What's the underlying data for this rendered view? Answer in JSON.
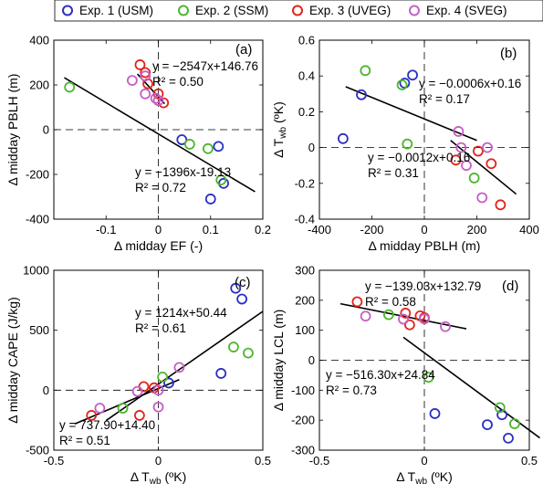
{
  "legend": {
    "entries": [
      {
        "label": "Exp. 1 (USM)",
        "color": "#2b2fc4"
      },
      {
        "label": "Exp. 2 (SSM)",
        "color": "#4db52e"
      },
      {
        "label": "Exp. 3 (UVEG)",
        "color": "#e3231b"
      },
      {
        "label": "Exp. 4 (SVEG)",
        "color": "#c45fc6"
      }
    ]
  },
  "chart_data": [
    {
      "panel": "(a)",
      "type": "scatter",
      "xlabel": "Δ midday EF (-)",
      "ylabel": "Δ midday PBLH (m)",
      "xlim": [
        -0.2,
        0.2
      ],
      "ylim": [
        -400,
        400
      ],
      "xticks": [
        -0.1,
        0,
        0.1,
        0.2
      ],
      "xtick_labels": [
        "-0.1",
        "0",
        "0.1",
        "0.2"
      ],
      "yticks": [
        -400,
        -200,
        0,
        200,
        400
      ],
      "ytick_labels": [
        "-400",
        "-200",
        "0",
        "200",
        "400"
      ],
      "series": [
        {
          "name": "Exp. 1 (USM)",
          "points": [
            [
              0.045,
              -45
            ],
            [
              0.1,
              -310
            ],
            [
              0.115,
              -75
            ],
            [
              0.125,
              -240
            ]
          ]
        },
        {
          "name": "Exp. 2 (SSM)",
          "points": [
            [
              -0.17,
              190
            ],
            [
              0.06,
              -65
            ],
            [
              0.095,
              -85
            ],
            [
              0.12,
              -225
            ]
          ]
        },
        {
          "name": "Exp. 3 (UVEG)",
          "points": [
            [
              -0.035,
              290
            ],
            [
              -0.025,
              255
            ],
            [
              -0.02,
              205
            ],
            [
              0.0,
              160
            ],
            [
              0.01,
              120
            ]
          ]
        },
        {
          "name": "Exp. 4 (SVEG)",
          "points": [
            [
              -0.05,
              220
            ],
            [
              -0.025,
              240
            ],
            [
              -0.025,
              160
            ],
            [
              -0.005,
              140
            ],
            [
              0.0,
              130
            ]
          ]
        }
      ],
      "fits": [
        {
          "equation": "y = −2547x+146.76",
          "r2": "R² = 0.50",
          "slope": -2547,
          "intercept": 146.76,
          "x_range": [
            -0.04,
            0.012
          ]
        },
        {
          "equation": "y = −1396x-19.13",
          "r2": "R² = 0.72",
          "slope": -1396,
          "intercept": -19.13,
          "x_range": [
            -0.18,
            0.185
          ]
        }
      ]
    },
    {
      "panel": "(b)",
      "type": "scatter",
      "xlabel": "Δ midday PBLH (m)",
      "ylabel_main": "Δ T",
      "ylabel_sub": "wb",
      "ylabel_unit": "(ºK)",
      "xlim": [
        -400,
        400
      ],
      "ylim": [
        -0.4,
        0.6
      ],
      "xticks": [
        -400,
        -200,
        0,
        200,
        400
      ],
      "xtick_labels": [
        "-400",
        "-200",
        "0",
        "200",
        "400"
      ],
      "yticks": [
        -0.4,
        -0.2,
        0,
        0.2,
        0.4,
        0.6
      ],
      "ytick_labels": [
        "-0.4",
        "-0.2",
        "0",
        "0.2",
        "0.4",
        "0.6"
      ],
      "series": [
        {
          "name": "Exp. 1 (USM)",
          "points": [
            [
              -310,
              0.05
            ],
            [
              -240,
              0.295
            ],
            [
              -75,
              0.36
            ],
            [
              -45,
              0.405
            ]
          ]
        },
        {
          "name": "Exp. 2 (SSM)",
          "points": [
            [
              -225,
              0.43
            ],
            [
              -85,
              0.35
            ],
            [
              -65,
              0.02
            ],
            [
              190,
              -0.17
            ]
          ]
        },
        {
          "name": "Exp. 3 (UVEG)",
          "points": [
            [
              120,
              -0.07
            ],
            [
              205,
              -0.02
            ],
            [
              255,
              -0.09
            ],
            [
              290,
              -0.32
            ]
          ]
        },
        {
          "name": "Exp. 4 (SVEG)",
          "points": [
            [
              130,
              0.09
            ],
            [
              140,
              0.0
            ],
            [
              160,
              -0.1
            ],
            [
              220,
              -0.28
            ],
            [
              240,
              0.0
            ]
          ]
        }
      ],
      "fits": [
        {
          "equation": "y = −0.0006x+0.16",
          "r2": "R² = 0.17",
          "slope": -0.0006,
          "intercept": 0.16,
          "x_range": [
            -300,
            200
          ]
        },
        {
          "equation": "y = −0.0012x+0.16",
          "r2": "R² = 0.31",
          "slope": -0.0012,
          "intercept": 0.16,
          "x_range": [
            100,
            350
          ]
        }
      ]
    },
    {
      "panel": "(c)",
      "type": "scatter",
      "xlabel_main": "Δ T",
      "xlabel_sub": "wb",
      "xlabel_unit": "(ºK)",
      "ylabel": "Δ midday CAPE (J/kg)",
      "xlim": [
        -0.5,
        0.5
      ],
      "ylim": [
        -500,
        1000
      ],
      "xticks": [
        -0.5,
        0,
        0.5
      ],
      "xtick_labels": [
        "-0.5",
        "0",
        "0.5"
      ],
      "yticks": [
        -500,
        0,
        500,
        1000
      ],
      "ytick_labels": [
        "-500",
        "0",
        "500",
        "1000"
      ],
      "series": [
        {
          "name": "Exp. 1 (USM)",
          "points": [
            [
              0.05,
              60
            ],
            [
              0.3,
              140
            ],
            [
              0.37,
              850
            ],
            [
              0.4,
              760
            ]
          ]
        },
        {
          "name": "Exp. 2 (SSM)",
          "points": [
            [
              -0.17,
              -150
            ],
            [
              0.02,
              110
            ],
            [
              0.36,
              360
            ],
            [
              0.43,
              310
            ]
          ]
        },
        {
          "name": "Exp. 3 (UVEG)",
          "points": [
            [
              -0.32,
              -210
            ],
            [
              -0.09,
              -210
            ],
            [
              -0.07,
              30
            ],
            [
              -0.02,
              20
            ]
          ]
        },
        {
          "name": "Exp. 4 (SVEG)",
          "points": [
            [
              -0.28,
              -150
            ],
            [
              -0.1,
              -10
            ],
            [
              0.0,
              -140
            ],
            [
              0.0,
              0
            ],
            [
              0.1,
              190
            ]
          ]
        }
      ],
      "fits": [
        {
          "equation": "y = 1214x+50.44",
          "r2": "R² = 0.61",
          "slope": 1214,
          "intercept": 50.44,
          "x_range": [
            -0.25,
            0.5
          ]
        },
        {
          "equation": "y = 737.90+14.40",
          "r2": "R² = 0.51",
          "slope": 737.9,
          "intercept": 14.4,
          "x_range": [
            -0.4,
            0.1
          ]
        }
      ]
    },
    {
      "panel": "(d)",
      "type": "scatter",
      "xlabel_main": "Δ T",
      "xlabel_sub": "wb",
      "xlabel_unit": "(ºK)",
      "ylabel": "Δ midday LCL (m)",
      "xlim": [
        -0.5,
        0.5
      ],
      "ylim": [
        -300,
        300
      ],
      "xticks": [
        -0.5,
        0,
        0.5
      ],
      "xtick_labels": [
        "-0.5",
        "0",
        "0.5"
      ],
      "yticks": [
        -300,
        -200,
        -100,
        0,
        100,
        200,
        300
      ],
      "ytick_labels": [
        "-300",
        "-200",
        "-100",
        "0",
        "100",
        "200",
        "300"
      ],
      "series": [
        {
          "name": "Exp. 1 (USM)",
          "points": [
            [
              0.05,
              -178
            ],
            [
              0.3,
              -215
            ],
            [
              0.37,
              -182
            ],
            [
              0.4,
              -260
            ]
          ]
        },
        {
          "name": "Exp. 2 (SSM)",
          "points": [
            [
              -0.17,
              152
            ],
            [
              0.02,
              -57
            ],
            [
              0.36,
              -158
            ],
            [
              0.43,
              -212
            ]
          ]
        },
        {
          "name": "Exp. 3 (UVEG)",
          "points": [
            [
              -0.32,
              195
            ],
            [
              -0.09,
              157
            ],
            [
              -0.07,
              118
            ],
            [
              -0.02,
              148
            ],
            [
              0.0,
              142
            ]
          ]
        },
        {
          "name": "Exp. 4 (SVEG)",
          "points": [
            [
              -0.28,
              147
            ],
            [
              -0.1,
              137
            ],
            [
              0.0,
              138
            ],
            [
              0.1,
              112
            ]
          ]
        }
      ],
      "fits": [
        {
          "equation": "y = −139.03x+132.79",
          "r2": "R² = 0.58",
          "slope": -139.03,
          "intercept": 132.79,
          "x_range": [
            -0.4,
            0.2
          ]
        },
        {
          "equation": "y = −516.30x+24.84",
          "r2": "R² = 0.73",
          "slope": -516.3,
          "intercept": 24.84,
          "x_range": [
            -0.1,
            0.55
          ]
        }
      ]
    }
  ]
}
